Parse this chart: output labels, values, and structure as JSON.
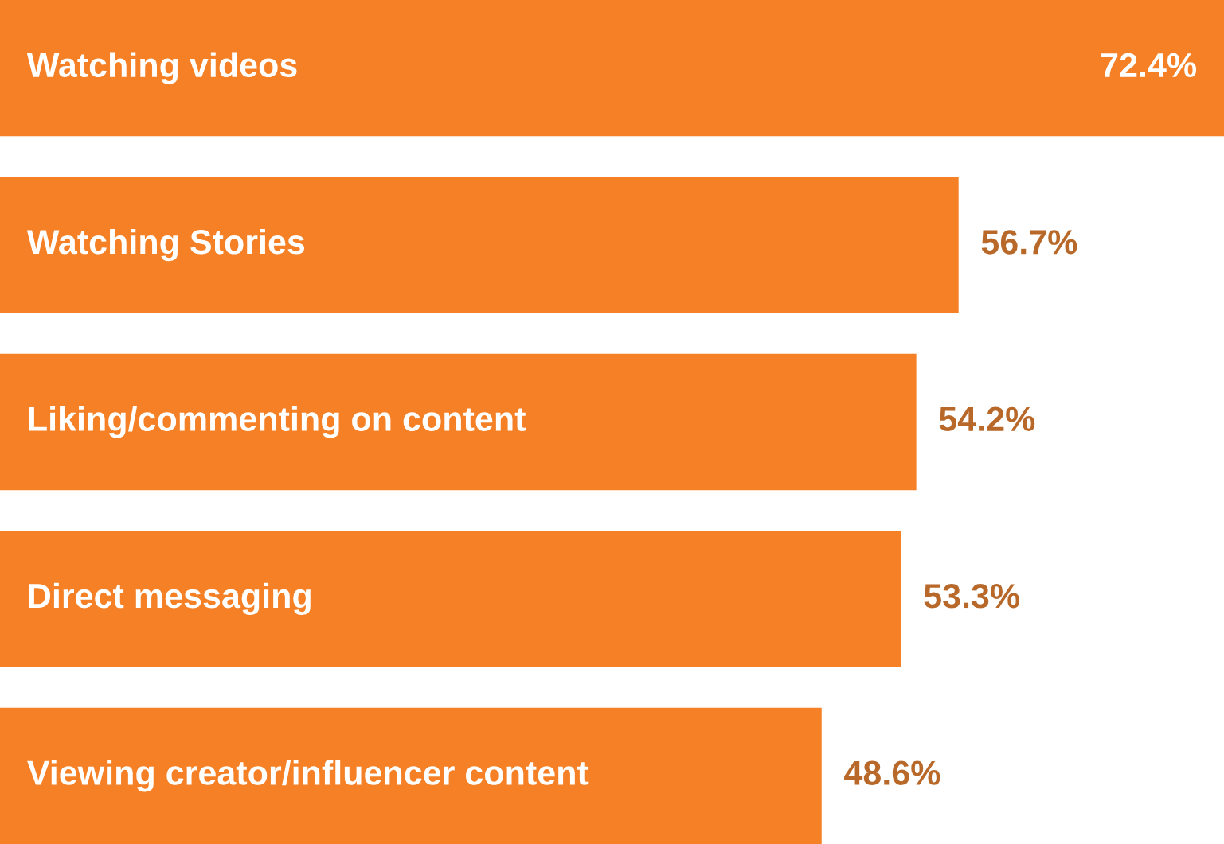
{
  "chart_data": {
    "type": "bar",
    "orientation": "horizontal",
    "categories": [
      "Watching videos",
      "Watching Stories",
      "Liking/commenting on content",
      "Direct messaging",
      "Viewing creator/influencer content"
    ],
    "values": [
      72.4,
      56.7,
      54.2,
      53.3,
      48.6
    ],
    "value_labels": [
      "72.4%",
      "56.7%",
      "54.2%",
      "53.3%",
      "48.6%"
    ],
    "color": "#f58025"
  }
}
